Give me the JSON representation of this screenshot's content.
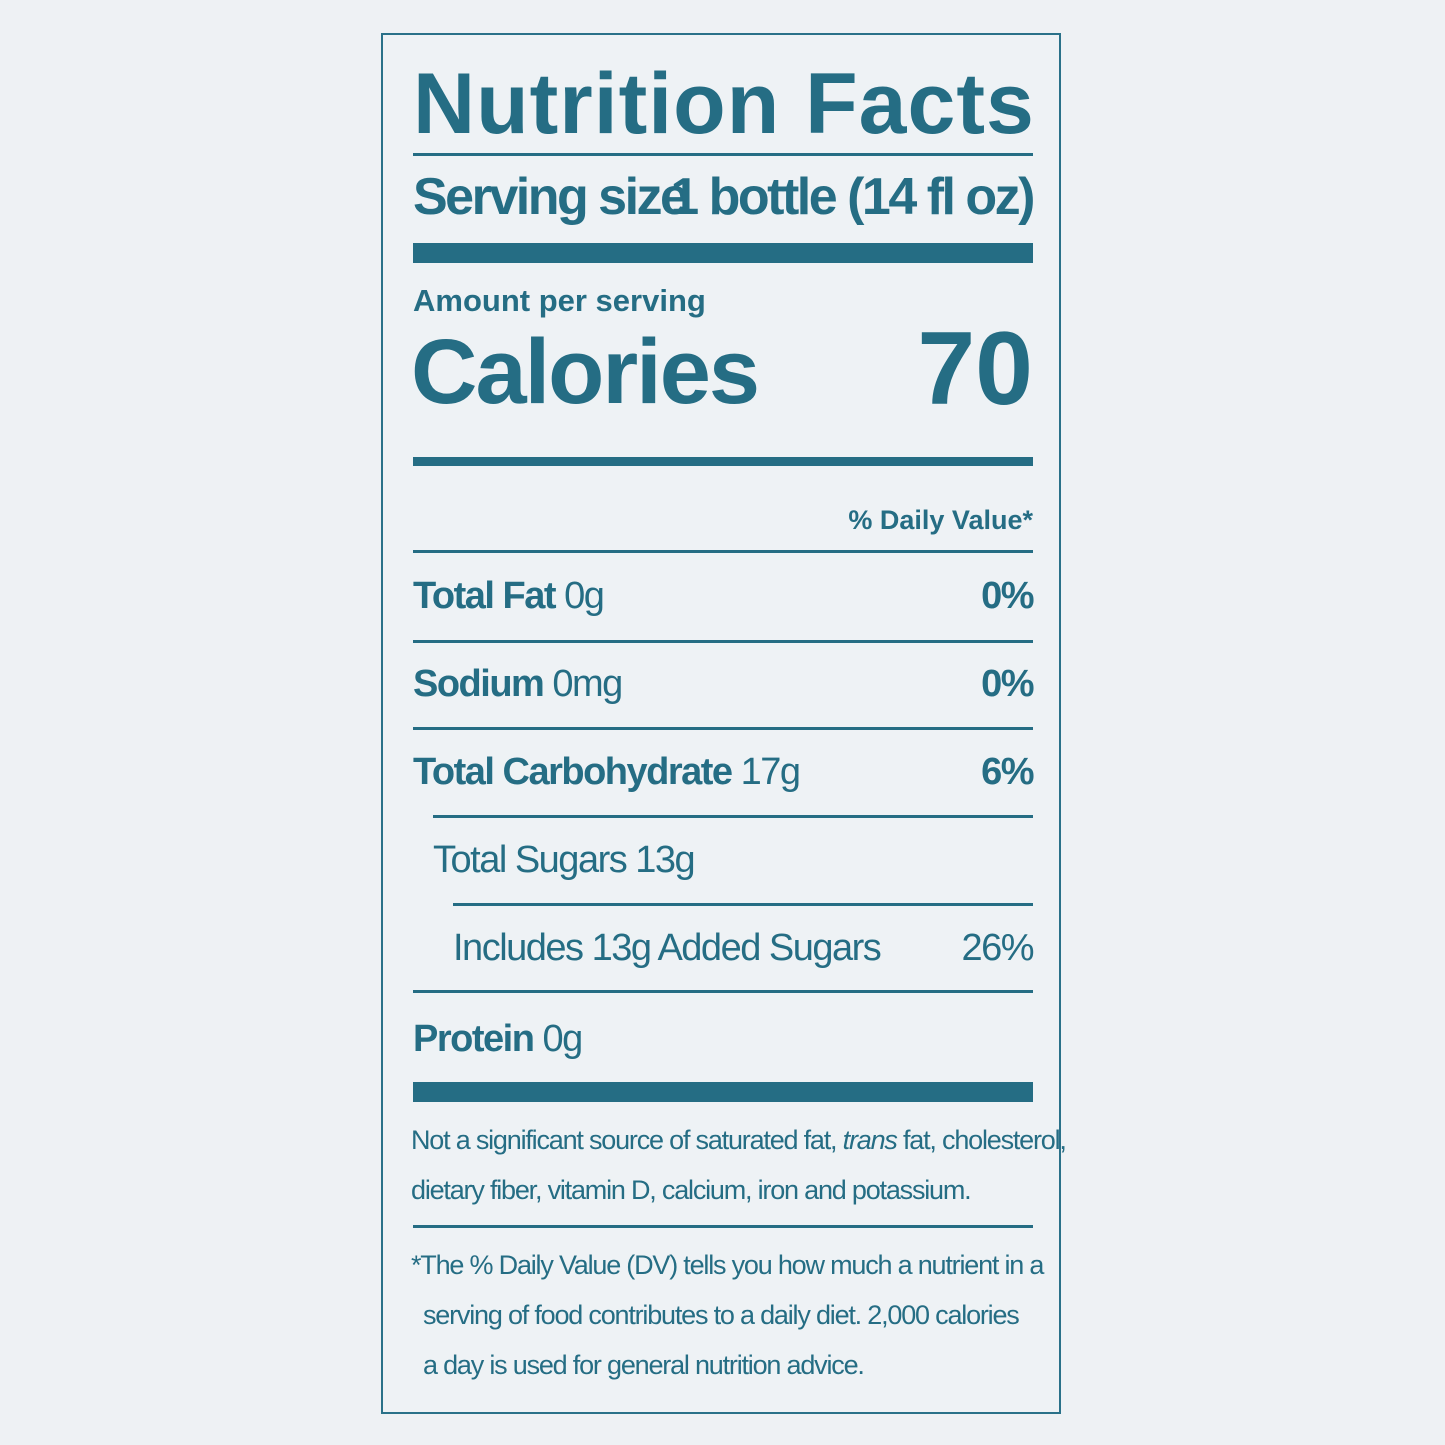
{
  "label": {
    "title": "Nutrition Facts",
    "serving_size_label": "Serving size",
    "serving_size_value": "1 bottle (14 fl oz)",
    "amount_per_serving": "Amount per serving",
    "calories_label": "Calories",
    "calories_value": "70",
    "daily_value_header": "% Daily Value*",
    "nutrients": [
      {
        "name": "Total Fat",
        "amount": "0g",
        "dv": "0%"
      },
      {
        "name": "Sodium",
        "amount": "0mg",
        "dv": "0%"
      },
      {
        "name": "Total Carbohydrate",
        "amount": "17g",
        "dv": "6%"
      },
      {
        "name": "Total Sugars 13g",
        "amount": "",
        "dv": ""
      },
      {
        "name": "Includes 13g Added Sugars",
        "amount": "",
        "dv": "26%"
      },
      {
        "name": "Protein",
        "amount": "0g",
        "dv": ""
      }
    ],
    "not_significant_line1_a": "Not a significant source of saturated fat, ",
    "not_significant_trans": "trans",
    "not_significant_line1_b": " fat, cholesterol,",
    "not_significant_line2": "dietary fiber, vitamin D, calcium, iron and potassium.",
    "footnote_line1": "*The % Daily Value (DV) tells you how much a nutrient in a",
    "footnote_line2": "serving of food contributes to a daily diet. 2,000 calories",
    "footnote_line3": "a day is used for general nutrition advice."
  },
  "colors": {
    "ink": "#256d84",
    "background": "#eef2f5"
  }
}
